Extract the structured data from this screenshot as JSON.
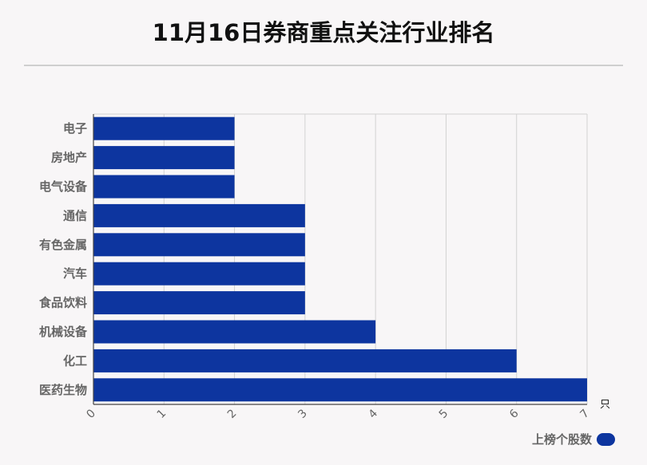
{
  "title": "11月16日券商重点关注行业排名",
  "chart_data": {
    "type": "bar",
    "orientation": "horizontal",
    "title": "11月16日券商重点关注行业排名",
    "categories": [
      "电子",
      "房地产",
      "电气设备",
      "通信",
      "有色金属",
      "汽车",
      "食品饮料",
      "机械设备",
      "化工",
      "医药生物"
    ],
    "series": [
      {
        "name": "上榜个股数",
        "values": [
          2,
          2,
          2,
          3,
          3,
          3,
          3,
          4,
          6,
          7
        ],
        "color": "#0d359f"
      }
    ],
    "x_ticks": [
      "0",
      "1",
      "2",
      "3",
      "4",
      "5",
      "6",
      "7"
    ],
    "xlim": [
      0,
      7
    ],
    "x_unit": "只",
    "grid": true,
    "legend_position": "bottom-right"
  }
}
